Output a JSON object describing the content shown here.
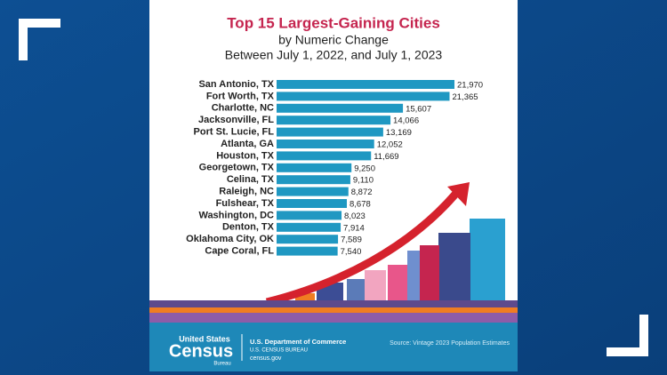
{
  "chart_data": {
    "type": "bar",
    "orientation": "horizontal",
    "title": "Top 15 Largest-Gaining Cities",
    "subtitle": [
      "by Numeric Change",
      "Between July 1, 2022, and July 1, 2023"
    ],
    "categories": [
      "San Antonio, TX",
      "Fort Worth, TX",
      "Charlotte, NC",
      "Jacksonville, FL",
      "Port St. Lucie, FL",
      "Atlanta, GA",
      "Houston, TX",
      "Georgetown, TX",
      "Celina, TX",
      "Raleigh, NC",
      "Fulshear, TX",
      "Washington, DC",
      "Denton, TX",
      "Oklahoma City, OK",
      "Cape Coral, FL"
    ],
    "values": [
      21970,
      21365,
      15607,
      14066,
      13169,
      12052,
      11669,
      9250,
      9110,
      8872,
      8678,
      8023,
      7914,
      7589,
      7540
    ],
    "value_labels": [
      "21,970",
      "21,365",
      "15,607",
      "14,066",
      "13,169",
      "12,052",
      "11,669",
      "9,250",
      "9,110",
      "8,872",
      "8,678",
      "8,023",
      "7,914",
      "7,589",
      "7,540"
    ],
    "color": "#1f98c2"
  },
  "footer": {
    "logo": [
      "United States",
      "Census",
      "Bureau"
    ],
    "department": "U.S. Department of Commerce",
    "bureau": "U.S. CENSUS BUREAU",
    "website": "census.gov",
    "source": "Source: Vintage 2023 Population Estimates"
  }
}
